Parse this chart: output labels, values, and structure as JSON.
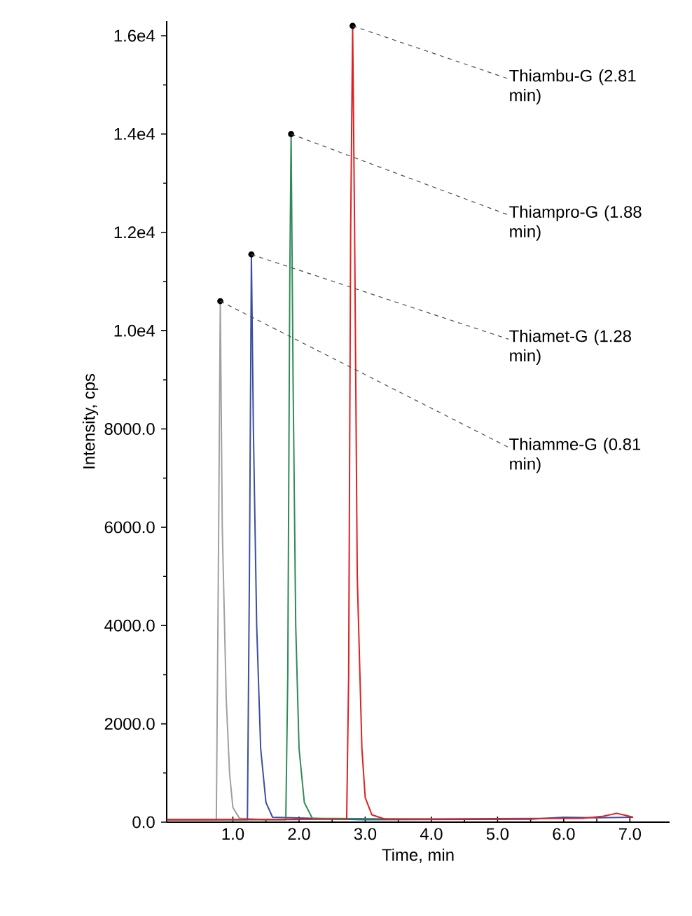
{
  "chart_data": {
    "type": "line",
    "xlabel": "Time, min",
    "ylabel": "Intensity, cps",
    "xlim": [
      0,
      7.6
    ],
    "ylim": [
      0,
      16300
    ],
    "xticks": [
      {
        "value": 1,
        "label": "1.0"
      },
      {
        "value": 2,
        "label": "2.0"
      },
      {
        "value": 3,
        "label": "3.0"
      },
      {
        "value": 4,
        "label": "4.0"
      },
      {
        "value": 5,
        "label": "5.0"
      },
      {
        "value": 6,
        "label": "6.0"
      },
      {
        "value": 7,
        "label": "7.0"
      }
    ],
    "yticks": [
      {
        "value": 0,
        "label": "0.0"
      },
      {
        "value": 2000,
        "label": "2000.0"
      },
      {
        "value": 4000,
        "label": "4000.0"
      },
      {
        "value": 6000,
        "label": "6000.0"
      },
      {
        "value": 8000,
        "label": "8000.0"
      },
      {
        "value": 10000,
        "label": "1.0e4"
      },
      {
        "value": 12000,
        "label": "1.2e4"
      },
      {
        "value": 14000,
        "label": "1.4e4"
      },
      {
        "value": 16000,
        "label": "1.6e4"
      }
    ],
    "series": [
      {
        "color": "#a0a0a0",
        "x": [
          0,
          0.75,
          0.78,
          0.81,
          0.84,
          0.9,
          0.95,
          1.0,
          1.1,
          1.5,
          2.0
        ],
        "values": [
          50,
          50,
          5000,
          10600,
          6000,
          2500,
          1000,
          300,
          80,
          50,
          50
        ]
      },
      {
        "color": "#3a4fa0",
        "x": [
          0,
          1.22,
          1.25,
          1.28,
          1.31,
          1.36,
          1.42,
          1.5,
          1.6,
          3.0,
          5.5,
          6.0,
          6.5,
          7.05
        ],
        "values": [
          50,
          50,
          5000,
          11550,
          8000,
          4000,
          1500,
          400,
          100,
          50,
          60,
          100,
          90,
          100
        ]
      },
      {
        "color": "#2e8b57",
        "x": [
          0,
          1.8,
          1.83,
          1.86,
          1.88,
          1.91,
          1.95,
          2.0,
          2.08,
          2.2,
          4.0
        ],
        "values": [
          50,
          50,
          3000,
          11000,
          14000,
          9000,
          4000,
          1500,
          400,
          80,
          60
        ]
      },
      {
        "color": "#e02020",
        "x": [
          0,
          2.72,
          2.75,
          2.78,
          2.81,
          2.84,
          2.88,
          2.95,
          3.0,
          3.1,
          3.3,
          6.3,
          6.6,
          6.8,
          6.9,
          7.05
        ],
        "values": [
          50,
          60,
          3000,
          12000,
          16200,
          12000,
          5000,
          1500,
          500,
          150,
          60,
          80,
          120,
          180,
          150,
          100
        ]
      }
    ],
    "annotations": [
      {
        "text": "Thiambu-G (2.81 min)",
        "x": 2.81,
        "y": 16200
      },
      {
        "text": "Thiampro-G (1.88 min)",
        "x": 1.88,
        "y": 14000
      },
      {
        "text": "Thiamet-G (1.28 min)",
        "x": 1.28,
        "y": 11550
      },
      {
        "text": "Thiamme-G (0.81 min)",
        "x": 0.81,
        "y": 10600
      }
    ]
  }
}
